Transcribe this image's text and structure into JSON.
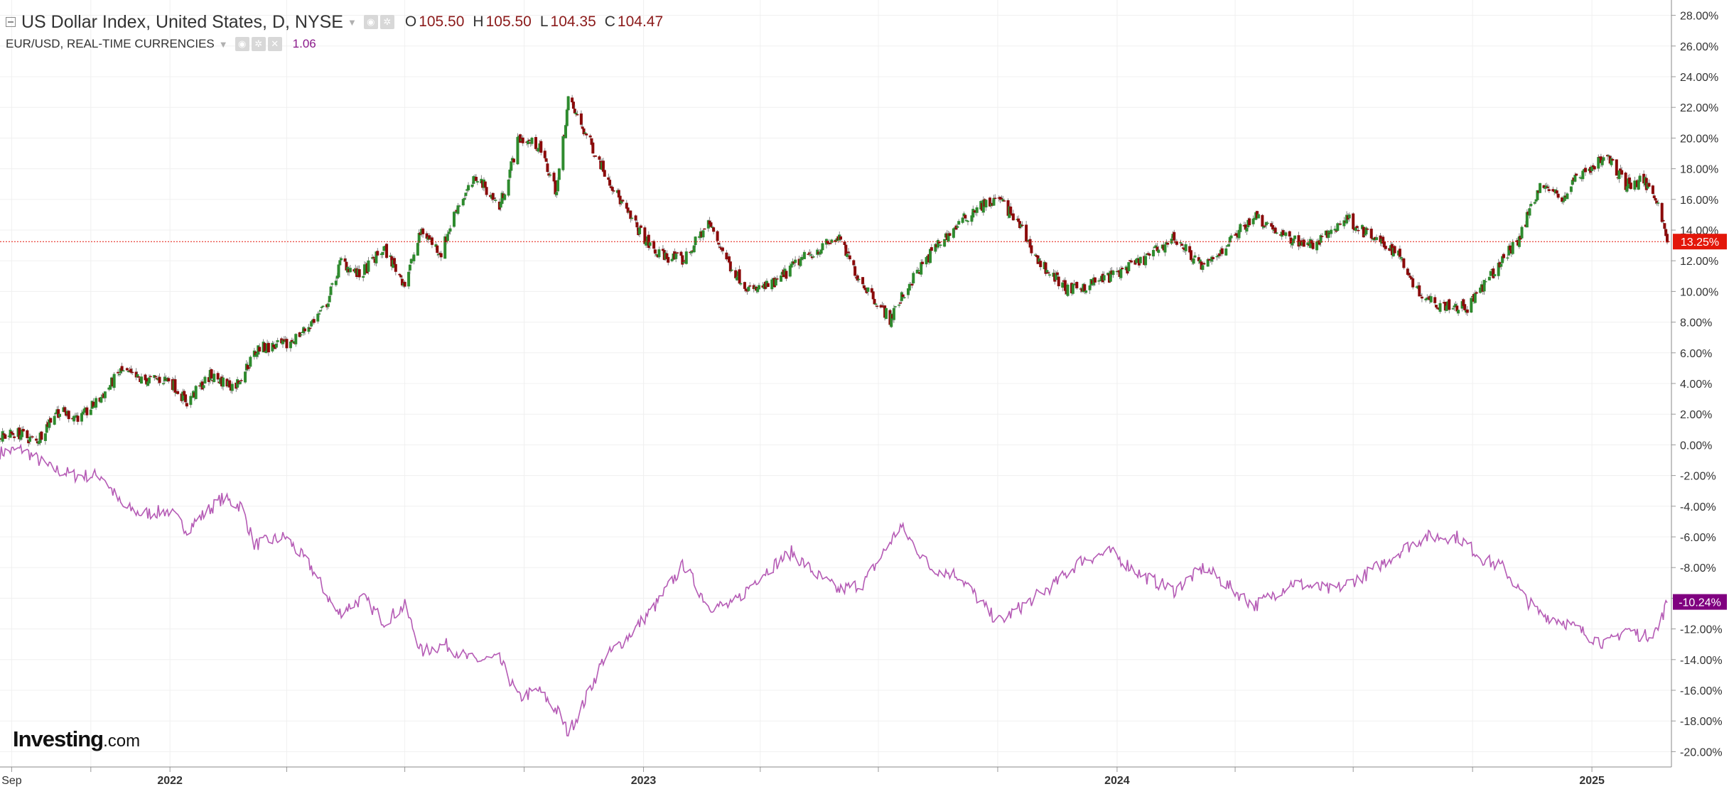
{
  "legend": {
    "main_title": "US Dollar Index, United States, D, NYSE",
    "open_label": "O",
    "open_value": "105.50",
    "high_label": "H",
    "high_value": "105.50",
    "low_label": "L",
    "low_value": "104.35",
    "close_label": "C",
    "close_value": "104.47",
    "compare_title": "EUR/USD, REAL-TIME CURRENCIES",
    "compare_value": "1.06"
  },
  "logo": {
    "brand": "Investing",
    "suffix": ".com"
  },
  "colors": {
    "up_candle": "#2e8b2e",
    "down_candle": "#8b0a0a",
    "compare_line": "#b55bb5",
    "last_price_badge": "#e3170a",
    "compare_badge": "#800080",
    "grid": "#f0f0f0",
    "axis_text": "#333333"
  },
  "icons": [
    "collapse-icon",
    "eye-icon",
    "settings-icon",
    "close-icon",
    "dropdown-caret-icon"
  ],
  "chart_data": {
    "type": "line",
    "chart_style": "candlestick with comparison line",
    "scale": "percent change",
    "y_axis": {
      "side": "right",
      "range": [
        -21,
        29
      ],
      "tick_labels": [
        "28.00%",
        "26.00%",
        "24.00%",
        "22.00%",
        "20.00%",
        "18.00%",
        "16.00%",
        "14.00%",
        "12.00%",
        "10.00%",
        "8.00%",
        "6.00%",
        "4.00%",
        "2.00%",
        "0.00%",
        "-2.00%",
        "-4.00%",
        "-6.00%",
        "-8.00%",
        "-10.00%",
        "-12.00%",
        "-14.00%",
        "-16.00%",
        "-18.00%",
        "-20.00%"
      ]
    },
    "x_axis": {
      "range": [
        "2021-08-23",
        "2025-02-28"
      ],
      "tick_labels": [
        {
          "label": "Sep",
          "date": "2021-09-01"
        },
        {
          "label": "2022",
          "date": "2022-01-01"
        },
        {
          "label": "2023",
          "date": "2023-01-01"
        },
        {
          "label": "2024",
          "date": "2024-01-01"
        },
        {
          "label": "2025",
          "date": "2025-01-01"
        }
      ],
      "minor_marks": [
        "2021-09-01",
        "2021-11-01",
        "2022-01-01",
        "2022-04-01",
        "2022-07-01",
        "2022-10-01",
        "2023-01-01",
        "2023-04-01",
        "2023-07-01",
        "2023-10-01",
        "2024-01-01",
        "2024-04-01",
        "2024-07-01",
        "2024-10-01",
        "2025-01-01"
      ]
    },
    "grid": true,
    "legend": "top-left",
    "last_values": [
      {
        "label": "13.25%",
        "value": 13.25,
        "color": "#e3170a",
        "dashed_line": true
      },
      {
        "label": "-10.24%",
        "value": -10.24,
        "color": "#800080",
        "dashed_line": false
      }
    ],
    "series": [
      {
        "name": "US Dollar Index, United States, D, NYSE",
        "kind": "candlestick",
        "points": [
          [
            "2021-08-23",
            0.5
          ],
          [
            "2021-09-05",
            0.8
          ],
          [
            "2021-09-20",
            0.2
          ],
          [
            "2021-10-05",
            2.2
          ],
          [
            "2021-10-25",
            1.8
          ],
          [
            "2021-11-08",
            3.0
          ],
          [
            "2021-11-24",
            4.8
          ],
          [
            "2021-12-10",
            4.2
          ],
          [
            "2021-12-31",
            4.3
          ],
          [
            "2022-01-14",
            2.8
          ],
          [
            "2022-02-01",
            4.5
          ],
          [
            "2022-02-20",
            3.8
          ],
          [
            "2022-03-10",
            6.3
          ],
          [
            "2022-04-01",
            6.5
          ],
          [
            "2022-04-15",
            7.5
          ],
          [
            "2022-05-01",
            9.0
          ],
          [
            "2022-05-13",
            12.0
          ],
          [
            "2022-05-27",
            11.0
          ],
          [
            "2022-06-15",
            12.8
          ],
          [
            "2022-07-01",
            10.5
          ],
          [
            "2022-07-14",
            14.0
          ],
          [
            "2022-07-29",
            12.5
          ],
          [
            "2022-08-10",
            15.5
          ],
          [
            "2022-08-26",
            17.5
          ],
          [
            "2022-09-12",
            15.5
          ],
          [
            "2022-09-27",
            20.0
          ],
          [
            "2022-10-12",
            19.5
          ],
          [
            "2022-10-26",
            16.5
          ],
          [
            "2022-11-04",
            22.5
          ],
          [
            "2022-11-16",
            20.5
          ],
          [
            "2022-12-01",
            18.0
          ],
          [
            "2022-12-20",
            15.0
          ],
          [
            "2023-01-10",
            12.5
          ],
          [
            "2023-02-01",
            12.0
          ],
          [
            "2023-02-20",
            14.5
          ],
          [
            "2023-03-10",
            11.5
          ],
          [
            "2023-03-25",
            10.0
          ],
          [
            "2023-04-12",
            10.5
          ],
          [
            "2023-05-01",
            12.0
          ],
          [
            "2023-05-31",
            13.5
          ],
          [
            "2023-06-15",
            11.0
          ],
          [
            "2023-07-10",
            8.2
          ],
          [
            "2023-07-25",
            10.5
          ],
          [
            "2023-08-15",
            13.0
          ],
          [
            "2023-09-15",
            15.5
          ],
          [
            "2023-10-03",
            16.0
          ],
          [
            "2023-10-20",
            14.0
          ],
          [
            "2023-11-01",
            12.0
          ],
          [
            "2023-11-25",
            10.0
          ],
          [
            "2023-12-27",
            11.0
          ],
          [
            "2024-01-20",
            12.0
          ],
          [
            "2024-02-14",
            13.5
          ],
          [
            "2024-03-08",
            11.5
          ],
          [
            "2024-04-16",
            15.0
          ],
          [
            "2024-05-10",
            13.5
          ],
          [
            "2024-06-01",
            13.0
          ],
          [
            "2024-06-26",
            14.8
          ],
          [
            "2024-07-15",
            13.5
          ],
          [
            "2024-08-05",
            12.5
          ],
          [
            "2024-08-20",
            10.0
          ],
          [
            "2024-09-05",
            9.2
          ],
          [
            "2024-09-27",
            9.0
          ],
          [
            "2024-10-15",
            11.0
          ],
          [
            "2024-11-06",
            13.5
          ],
          [
            "2024-11-22",
            17.0
          ],
          [
            "2024-12-10",
            16.0
          ],
          [
            "2024-12-20",
            17.5
          ],
          [
            "2025-01-13",
            18.8
          ],
          [
            "2025-01-27",
            17.0
          ],
          [
            "2025-02-10",
            17.2
          ],
          [
            "2025-02-21",
            16.0
          ],
          [
            "2025-02-28",
            13.25
          ]
        ]
      },
      {
        "name": "EUR/USD, REAL-TIME CURRENCIES",
        "kind": "line",
        "points": [
          [
            "2021-08-23",
            -0.5
          ],
          [
            "2021-09-10",
            -0.3
          ],
          [
            "2021-09-30",
            -1.5
          ],
          [
            "2021-10-20",
            -2.0
          ],
          [
            "2021-11-10",
            -2.0
          ],
          [
            "2021-11-25",
            -4.0
          ],
          [
            "2021-12-10",
            -4.5
          ],
          [
            "2021-12-31",
            -4.3
          ],
          [
            "2022-01-14",
            -5.5
          ],
          [
            "2022-02-10",
            -3.5
          ],
          [
            "2022-02-25",
            -4.0
          ],
          [
            "2022-03-07",
            -6.5
          ],
          [
            "2022-03-31",
            -6.0
          ],
          [
            "2022-04-20",
            -8.0
          ],
          [
            "2022-05-10",
            -11.0
          ],
          [
            "2022-05-30",
            -10.0
          ],
          [
            "2022-06-15",
            -11.5
          ],
          [
            "2022-07-01",
            -10.5
          ],
          [
            "2022-07-14",
            -13.5
          ],
          [
            "2022-08-01",
            -13.0
          ],
          [
            "2022-08-20",
            -14.0
          ],
          [
            "2022-09-12",
            -14.0
          ],
          [
            "2022-09-27",
            -16.5
          ],
          [
            "2022-10-12",
            -16.0
          ],
          [
            "2022-10-28",
            -17.5
          ],
          [
            "2022-11-04",
            -18.8
          ],
          [
            "2022-11-15",
            -17.0
          ],
          [
            "2022-12-01",
            -14.0
          ],
          [
            "2022-12-20",
            -12.5
          ],
          [
            "2023-01-10",
            -10.5
          ],
          [
            "2023-02-01",
            -7.8
          ],
          [
            "2023-02-20",
            -10.5
          ],
          [
            "2023-03-10",
            -10.5
          ],
          [
            "2023-04-01",
            -8.5
          ],
          [
            "2023-04-25",
            -7.0
          ],
          [
            "2023-05-15",
            -8.5
          ],
          [
            "2023-05-31",
            -9.5
          ],
          [
            "2023-06-20",
            -9.0
          ],
          [
            "2023-07-18",
            -5.3
          ],
          [
            "2023-08-10",
            -8.0
          ],
          [
            "2023-09-01",
            -8.5
          ],
          [
            "2023-09-25",
            -11.0
          ],
          [
            "2023-10-03",
            -11.5
          ],
          [
            "2023-10-20",
            -10.5
          ],
          [
            "2023-11-15",
            -9.0
          ],
          [
            "2023-12-05",
            -7.5
          ],
          [
            "2023-12-27",
            -7.0
          ],
          [
            "2024-01-20",
            -8.5
          ],
          [
            "2024-02-14",
            -9.5
          ],
          [
            "2024-03-08",
            -8.0
          ],
          [
            "2024-04-16",
            -10.5
          ],
          [
            "2024-05-15",
            -9.0
          ],
          [
            "2024-06-15",
            -9.5
          ],
          [
            "2024-07-10",
            -8.5
          ],
          [
            "2024-08-05",
            -7.0
          ],
          [
            "2024-08-25",
            -6.0
          ],
          [
            "2024-09-20",
            -6.0
          ],
          [
            "2024-10-10",
            -7.5
          ],
          [
            "2024-10-25",
            -8.0
          ],
          [
            "2024-11-10",
            -10.0
          ],
          [
            "2024-11-22",
            -11.0
          ],
          [
            "2024-12-10",
            -11.5
          ],
          [
            "2024-12-31",
            -12.5
          ],
          [
            "2025-01-13",
            -13.0
          ],
          [
            "2025-01-27",
            -12.0
          ],
          [
            "2025-02-10",
            -12.5
          ],
          [
            "2025-02-21",
            -12.0
          ],
          [
            "2025-02-28",
            -10.24
          ]
        ]
      }
    ]
  }
}
